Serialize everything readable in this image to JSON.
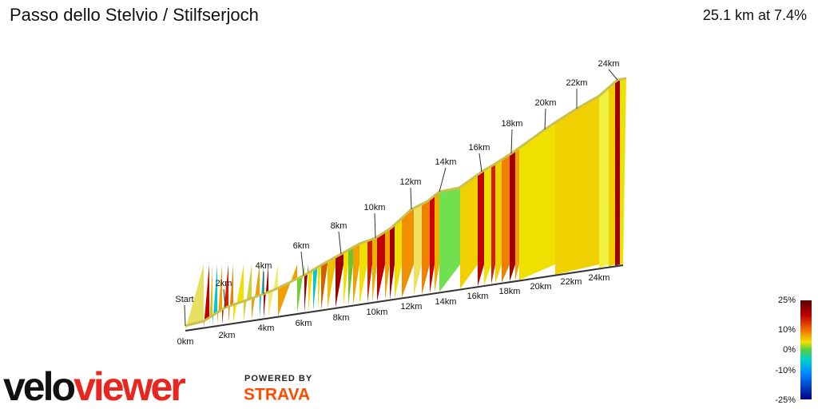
{
  "header": {
    "title": "Passo dello Stelvio / Stilfserjoch",
    "summary": "25.1 km at 7.4%"
  },
  "profile": {
    "top_labels": [
      "Start",
      "2km",
      "4km",
      "6km",
      "8km",
      "10km",
      "12km",
      "14km",
      "16km",
      "18km",
      "20km",
      "22km",
      "24km"
    ],
    "bottom_labels": [
      "0km",
      "2km",
      "4km",
      "6km",
      "8km",
      "10km",
      "12km",
      "14km",
      "16km",
      "18km",
      "20km",
      "22km",
      "24km"
    ]
  },
  "legend": {
    "labels": [
      "25%",
      "10%",
      "0%",
      "-10%",
      "-25%"
    ]
  },
  "branding": {
    "logo_left": "velo",
    "logo_right": "viewer",
    "powered_by": "POWERED BY",
    "partner": "STRAVA"
  }
}
